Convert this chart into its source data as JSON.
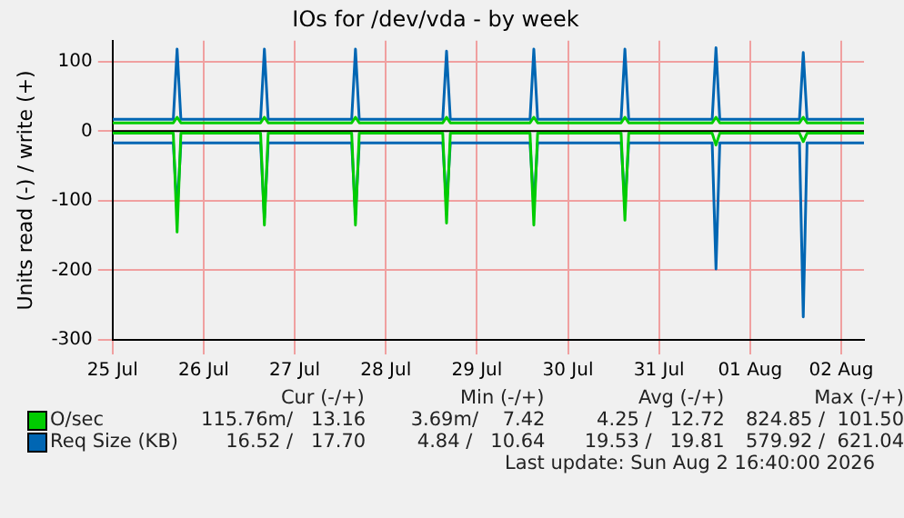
{
  "chart_data": {
    "type": "line",
    "title": "IOs for /dev/vda - by week",
    "ylabel": "Units read (-) / write (+)",
    "xlim": [
      "2026-07-25T00:00",
      "2026-08-02T06:00"
    ],
    "xticks": [
      {
        "value": "2026-07-25T00:00",
        "label": "25 Jul"
      },
      {
        "value": "2026-07-26T00:00",
        "label": "26 Jul"
      },
      {
        "value": "2026-07-27T00:00",
        "label": "27 Jul"
      },
      {
        "value": "2026-07-28T00:00",
        "label": "28 Jul"
      },
      {
        "value": "2026-07-29T00:00",
        "label": "29 Jul"
      },
      {
        "value": "2026-07-30T00:00",
        "label": "30 Jul"
      },
      {
        "value": "2026-07-31T00:00",
        "label": "31 Jul"
      },
      {
        "value": "2026-08-01T00:00",
        "label": "01 Aug"
      },
      {
        "value": "2026-08-02T00:00",
        "label": "02 Aug"
      }
    ],
    "ylim": [
      -300,
      130
    ],
    "yticks": [
      -300,
      -200,
      -100,
      0,
      100
    ],
    "grid": true,
    "legend": "bottom",
    "marker": "none",
    "x": [
      "2026-07-25T00:00",
      "2026-07-25T16:00",
      "2026-07-25T17:00",
      "2026-07-25T18:00",
      "2026-07-26T15:00",
      "2026-07-26T16:00",
      "2026-07-26T17:00",
      "2026-07-27T15:00",
      "2026-07-27T16:00",
      "2026-07-27T17:00",
      "2026-07-28T15:00",
      "2026-07-28T16:00",
      "2026-07-28T17:00",
      "2026-07-29T14:00",
      "2026-07-29T15:00",
      "2026-07-29T16:00",
      "2026-07-30T14:00",
      "2026-07-30T15:00",
      "2026-07-30T16:00",
      "2026-07-31T14:00",
      "2026-07-31T15:00",
      "2026-07-31T16:00",
      "2026-08-01T13:00",
      "2026-08-01T14:00",
      "2026-08-01T15:00",
      "2026-08-02T06:00"
    ],
    "series": [
      {
        "color": "#00cc00",
        "values": [
          -3,
          -3,
          -145,
          -3,
          -3,
          -135,
          -3,
          -3,
          -135,
          -3,
          -3,
          -132,
          -3,
          -3,
          -135,
          -3,
          -3,
          -128,
          -3,
          -3,
          -20,
          -3,
          -3,
          -15,
          -3,
          -3
        ]
      },
      {
        "color": "#0066b3",
        "values": [
          -17,
          -17,
          -115,
          -17,
          -17,
          -125,
          -17,
          -17,
          -120,
          -17,
          -17,
          -108,
          -17,
          -17,
          -108,
          -17,
          -17,
          -108,
          -17,
          -17,
          -198,
          -17,
          -17,
          -267,
          -17,
          -17
        ]
      },
      {
        "name": "O/sec",
        "color": "#00cc00",
        "values": [
          12,
          12,
          20,
          12,
          12,
          20,
          12,
          12,
          20,
          12,
          12,
          20,
          12,
          12,
          20,
          12,
          12,
          20,
          12,
          12,
          20,
          12,
          12,
          20,
          12,
          12
        ]
      },
      {
        "name": "Req Size (KB)",
        "color": "#0066b3",
        "values": [
          17,
          17,
          118,
          17,
          17,
          118,
          17,
          17,
          118,
          17,
          17,
          115,
          17,
          17,
          118,
          17,
          17,
          118,
          17,
          17,
          120,
          17,
          17,
          113,
          17,
          17
        ]
      }
    ],
    "annotations": [
      "Cur (-/+)",
      "Min (-/+)",
      "Avg (-/+)",
      "Max (-/+)",
      "115.76m/   13.16",
      "3.69m/    7.42",
      "4.25 /   12.72",
      "824.85 /  101.50",
      "16.52 /   17.70",
      "4.84 /   10.64",
      "19.53 /   19.81",
      "579.92 /  621.04",
      "Last update: Sun Aug  2 16:40:00 2026"
    ]
  }
}
